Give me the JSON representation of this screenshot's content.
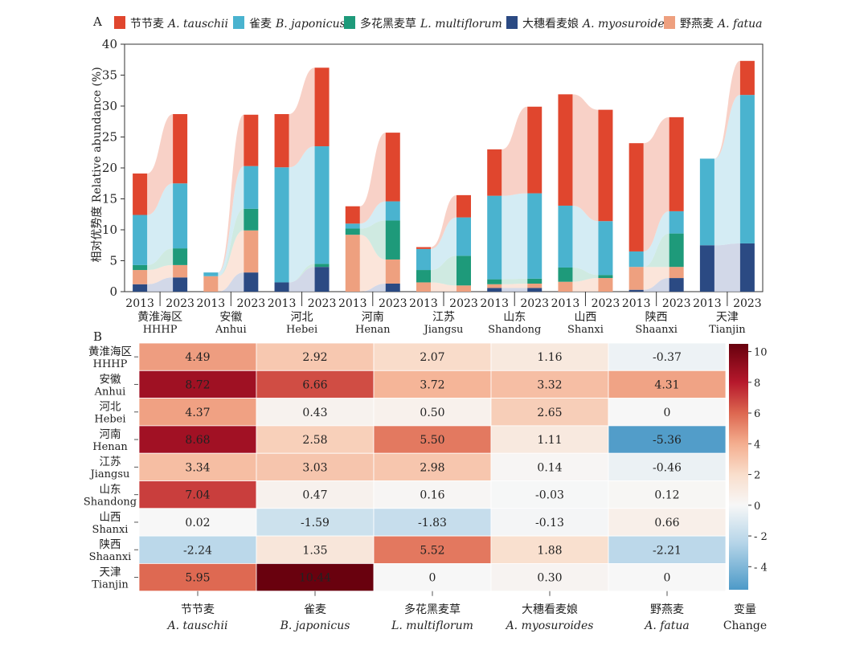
{
  "chart_data": [
    {
      "panel_label": "A",
      "type": "bar",
      "stacked": true,
      "ylabel": "相对优势度 Relative abundance (%)",
      "ylim": [
        0,
        40
      ],
      "yticks": [
        0,
        5,
        10,
        15,
        20,
        25,
        30,
        35,
        40
      ],
      "years": [
        "2013",
        "2023"
      ],
      "regions": [
        {
          "cn": "黄淮海区",
          "en": "HHHP"
        },
        {
          "cn": "安徽",
          "en": "Anhui"
        },
        {
          "cn": "河北",
          "en": "Hebei"
        },
        {
          "cn": "河南",
          "en": "Henan"
        },
        {
          "cn": "江苏",
          "en": "Jiangsu"
        },
        {
          "cn": "山东",
          "en": "Shandong"
        },
        {
          "cn": "山西",
          "en": "Shanxi"
        },
        {
          "cn": "陕西",
          "en": "Shaanxi"
        },
        {
          "cn": "天津",
          "en": "Tianjin"
        }
      ],
      "legend_position": "top",
      "series": [
        {
          "cn": "节节麦",
          "name": "A. tauschii",
          "color": "#e0462e",
          "light": "#f6c2b4",
          "values_2013": [
            6.7,
            0,
            8.6,
            2.8,
            0.3,
            7.5,
            18.0,
            17.5,
            0
          ],
          "values_2023": [
            11.2,
            8.3,
            12.7,
            11.1,
            3.6,
            14.0,
            18.0,
            15.2,
            5.5
          ]
        },
        {
          "cn": "雀麦",
          "name": "B. japonicus",
          "color": "#4ab3cf",
          "light": "#c6e6f0",
          "values_2013": [
            8.1,
            0.6,
            18.6,
            0.8,
            3.4,
            13.5,
            10.0,
            2.5,
            14.0
          ],
          "values_2023": [
            10.5,
            6.9,
            19.0,
            3.1,
            6.2,
            13.8,
            8.7,
            3.6,
            24.0
          ]
        },
        {
          "cn": "多花黑麦草",
          "name": "L. multiflorum",
          "color": "#1e9a7a",
          "light": "#bfe3d7",
          "values_2013": [
            0.8,
            0,
            0,
            1.0,
            2.0,
            0.8,
            2.3,
            0,
            0
          ],
          "values_2023": [
            2.7,
            3.5,
            0.5,
            6.3,
            4.8,
            0.8,
            0.5,
            5.4,
            0
          ]
        },
        {
          "cn": "大穗看麦娘",
          "name": "A. myosuroides",
          "color": "#2b4a83",
          "light": "#c3cbe0",
          "values_2013": [
            1.2,
            0,
            1.5,
            0,
            0,
            0.6,
            0,
            0.3,
            7.5
          ],
          "values_2023": [
            2.3,
            3.1,
            4.0,
            1.3,
            0,
            0.6,
            0,
            2.2,
            7.8
          ]
        },
        {
          "cn": "野燕麦",
          "name": "A. fatua",
          "color": "#eea07f",
          "light": "#f9dccd",
          "values_2013": [
            2.3,
            2.5,
            0,
            9.2,
            1.5,
            0.6,
            1.6,
            3.7,
            0
          ],
          "values_2023": [
            2.0,
            6.8,
            0,
            3.9,
            1.0,
            0.7,
            2.2,
            1.8,
            0
          ]
        }
      ]
    },
    {
      "panel_label": "B",
      "type": "heatmap",
      "rows": [
        {
          "cn": "黄淮海区",
          "en": "HHHP"
        },
        {
          "cn": "安徽",
          "en": "Anhui"
        },
        {
          "cn": "河北",
          "en": "Hebei"
        },
        {
          "cn": "河南",
          "en": "Henan"
        },
        {
          "cn": "江苏",
          "en": "Jiangsu"
        },
        {
          "cn": "山东",
          "en": "Shandong"
        },
        {
          "cn": "山西",
          "en": "Shanxi"
        },
        {
          "cn": "陕西",
          "en": "Shaanxi"
        },
        {
          "cn": "天津",
          "en": "Tianjin"
        }
      ],
      "columns": [
        {
          "cn": "节节麦",
          "en": "A. tauschii"
        },
        {
          "cn": "雀麦",
          "en": "B. japonicus"
        },
        {
          "cn": "多花黑麦草",
          "en": "L. multiflorum"
        },
        {
          "cn": "大穗看麦娘",
          "en": "A. myosuroides"
        },
        {
          "cn": "野燕麦",
          "en": "A. fatua"
        }
      ],
      "values": [
        [
          "4.49",
          "2.92",
          "2.07",
          "1.16",
          "-0.37"
        ],
        [
          "8.72",
          "6.66",
          "3.72",
          "3.32",
          "4.31"
        ],
        [
          "4.37",
          "0.43",
          "0.50",
          "2.65",
          "0"
        ],
        [
          "8.68",
          "2.58",
          "5.50",
          "1.11",
          "-5.36"
        ],
        [
          "3.34",
          "3.03",
          "2.98",
          "0.14",
          "-0.46"
        ],
        [
          "7.04",
          "0.47",
          "0.16",
          "-0.03",
          "0.12"
        ],
        [
          "0.02",
          "-1.59",
          "-1.83",
          "-0.13",
          "0.66"
        ],
        [
          "-2.24",
          "1.35",
          "5.52",
          "1.88",
          "-2.21"
        ],
        [
          "5.95",
          "10.44",
          "0",
          "0.30",
          "0"
        ]
      ],
      "colorbar": {
        "label_cn": "变量",
        "label_en": "Change",
        "ticks": [
          "10",
          "8",
          "6",
          "4",
          "2",
          "0",
          "- 2",
          "- 4"
        ],
        "range": [
          -5.5,
          10.5
        ]
      }
    }
  ]
}
